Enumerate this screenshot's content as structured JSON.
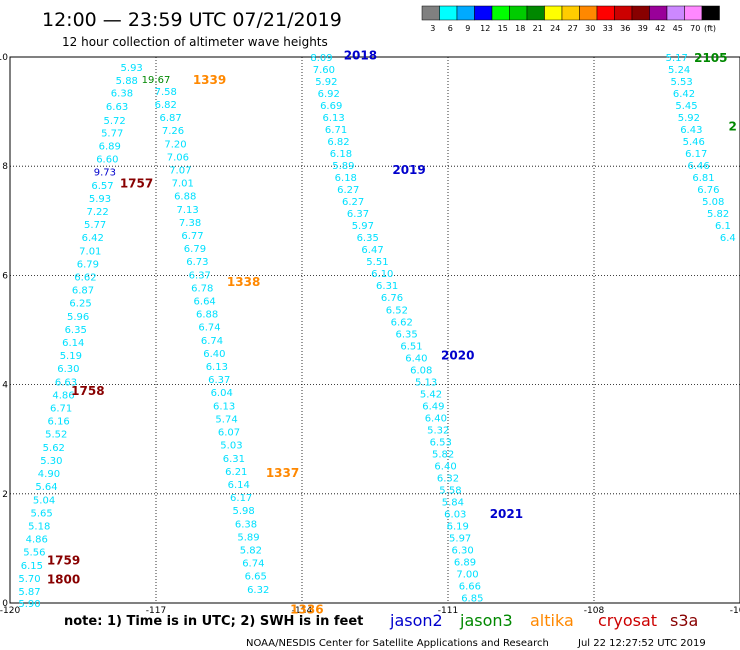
{
  "header": {
    "title": "12:00 — 23:59 UTC 07/21/2019",
    "subtitle": "12 hour collection of altimeter wave heights"
  },
  "color_scale": {
    "unit": "(ft)",
    "bins": [
      {
        "label": "3",
        "color": "#808080"
      },
      {
        "label": "6",
        "color": "#00ffff"
      },
      {
        "label": "9",
        "color": "#00aaff"
      },
      {
        "label": "12",
        "color": "#0000ff"
      },
      {
        "label": "15",
        "color": "#00ff00"
      },
      {
        "label": "18",
        "color": "#00cc00"
      },
      {
        "label": "21",
        "color": "#008800"
      },
      {
        "label": "24",
        "color": "#ffff00"
      },
      {
        "label": "27",
        "color": "#ffcc00"
      },
      {
        "label": "30",
        "color": "#ff8800"
      },
      {
        "label": "33",
        "color": "#ff0000"
      },
      {
        "label": "36",
        "color": "#cc0000"
      },
      {
        "label": "39",
        "color": "#880000"
      },
      {
        "label": "42",
        "color": "#990099"
      },
      {
        "label": "45",
        "color": "#cc88ff"
      },
      {
        "label": "70",
        "color": "#ff88ff"
      },
      {
        "label": "",
        "color": "#000000"
      }
    ]
  },
  "footer": {
    "note": "note: 1) Time is in UTC; 2) SWH is in feet",
    "credit": "NOAA/NESDIS Center for Satellite Applications and Research",
    "timestamp": "Jul 22 12:27:52 UTC 2019"
  },
  "legend": [
    {
      "name": "jason2",
      "color": "#0000cc"
    },
    {
      "name": "jason3",
      "color": "#008800"
    },
    {
      "name": "altika",
      "color": "#ff8800"
    },
    {
      "name": "cryosat",
      "color": "#cc0000"
    },
    {
      "name": "s3a",
      "color": "#880000"
    }
  ],
  "chart_data": {
    "type": "scatter",
    "xlim": [
      -120,
      -105
    ],
    "ylim": [
      0,
      10
    ],
    "x_ticks": [
      "-120",
      "-117",
      "-114",
      "-111",
      "-108",
      "-105"
    ],
    "y_ticks": [
      "0",
      "2",
      "4",
      "6",
      "8",
      "10"
    ],
    "grid": true,
    "tracks": [
      {
        "satellite": "s3a",
        "color": "#00e0ff",
        "pass_labels": [
          {
            "text": "1757",
            "x": -117.4,
            "y": 7.7,
            "color": "#880000"
          },
          {
            "text": "1758",
            "x": -118.4,
            "y": 3.9,
            "color": "#880000"
          },
          {
            "text": "1759",
            "x": -118.9,
            "y": 0.8,
            "color": "#880000"
          },
          {
            "text": "1800",
            "x": -118.9,
            "y": 0.45,
            "color": "#880000"
          }
        ],
        "points": [
          {
            "x": -117.5,
            "y": 9.82,
            "v": "5.93"
          },
          {
            "x": -117.6,
            "y": 9.58,
            "v": "5.88"
          },
          {
            "x": -117.7,
            "y": 9.35,
            "v": "6.38"
          },
          {
            "x": -117.8,
            "y": 9.1,
            "v": "6.63"
          },
          {
            "x": -117.85,
            "y": 8.85,
            "v": "5.72"
          },
          {
            "x": -117.9,
            "y": 8.62,
            "v": "5.77"
          },
          {
            "x": -117.95,
            "y": 8.38,
            "v": "6.89"
          },
          {
            "x": -118.0,
            "y": 8.14,
            "v": "6.60"
          },
          {
            "x": -118.05,
            "y": 7.9,
            "v": "9.73",
            "c": "#0000cc"
          },
          {
            "x": -118.1,
            "y": 7.66,
            "v": "6.57"
          },
          {
            "x": -118.15,
            "y": 7.42,
            "v": "5.93"
          },
          {
            "x": -118.2,
            "y": 7.18,
            "v": "7.22"
          },
          {
            "x": -118.25,
            "y": 6.94,
            "v": "5.77"
          },
          {
            "x": -118.3,
            "y": 6.7,
            "v": "6.42"
          },
          {
            "x": -118.35,
            "y": 6.46,
            "v": "7.01"
          },
          {
            "x": -118.4,
            "y": 6.22,
            "v": "6.79"
          },
          {
            "x": -118.45,
            "y": 5.98,
            "v": "6.62"
          },
          {
            "x": -118.5,
            "y": 5.74,
            "v": "6.87"
          },
          {
            "x": -118.55,
            "y": 5.5,
            "v": "6.25"
          },
          {
            "x": -118.6,
            "y": 5.26,
            "v": "5.96"
          },
          {
            "x": -118.65,
            "y": 5.02,
            "v": "6.35"
          },
          {
            "x": -118.7,
            "y": 4.78,
            "v": "6.14"
          },
          {
            "x": -118.75,
            "y": 4.54,
            "v": "5.19"
          },
          {
            "x": -118.8,
            "y": 4.3,
            "v": "6.30"
          },
          {
            "x": -118.85,
            "y": 4.06,
            "v": "6.63"
          },
          {
            "x": -118.9,
            "y": 3.82,
            "v": "4.86"
          },
          {
            "x": -118.95,
            "y": 3.58,
            "v": "6.71"
          },
          {
            "x": -119.0,
            "y": 3.34,
            "v": "6.16"
          },
          {
            "x": -119.05,
            "y": 3.1,
            "v": "5.52"
          },
          {
            "x": -119.1,
            "y": 2.86,
            "v": "5.62"
          },
          {
            "x": -119.15,
            "y": 2.62,
            "v": "5.30"
          },
          {
            "x": -119.2,
            "y": 2.38,
            "v": "4.90"
          },
          {
            "x": -119.25,
            "y": 2.14,
            "v": "5.64"
          },
          {
            "x": -119.3,
            "y": 1.9,
            "v": "5.04"
          },
          {
            "x": -119.35,
            "y": 1.66,
            "v": "5.65"
          },
          {
            "x": -119.4,
            "y": 1.42,
            "v": "5.18"
          },
          {
            "x": -119.45,
            "y": 1.18,
            "v": "4.86"
          },
          {
            "x": -119.5,
            "y": 0.94,
            "v": "5.56"
          },
          {
            "x": -119.55,
            "y": 0.7,
            "v": "6.15"
          },
          {
            "x": -119.6,
            "y": 0.46,
            "v": "5.70"
          },
          {
            "x": -119.6,
            "y": 0.22,
            "v": "5.87"
          },
          {
            "x": -119.6,
            "y": 0.0,
            "v": "5.90"
          }
        ]
      },
      {
        "satellite": "altika",
        "color": "#00e0ff",
        "pass_labels": [
          {
            "text": "1339",
            "x": -115.9,
            "y": 9.6,
            "color": "#ff8800"
          },
          {
            "text": "1338",
            "x": -115.2,
            "y": 5.9,
            "color": "#ff8800"
          },
          {
            "text": "1337",
            "x": -114.4,
            "y": 2.4,
            "color": "#ff8800"
          },
          {
            "text": "1336",
            "x": -113.9,
            "y": -0.1,
            "color": "#ff8800"
          }
        ],
        "points": [
          {
            "x": -117.0,
            "y": 9.6,
            "v": "19.67",
            "c": "#008800"
          },
          {
            "x": -116.8,
            "y": 9.38,
            "v": "7.58"
          },
          {
            "x": -116.8,
            "y": 9.14,
            "v": "6.82"
          },
          {
            "x": -116.7,
            "y": 8.9,
            "v": "6.87"
          },
          {
            "x": -116.65,
            "y": 8.66,
            "v": "7.26"
          },
          {
            "x": -116.6,
            "y": 8.42,
            "v": "7.20"
          },
          {
            "x": -116.55,
            "y": 8.18,
            "v": "7.06"
          },
          {
            "x": -116.5,
            "y": 7.94,
            "v": "7.07"
          },
          {
            "x": -116.45,
            "y": 7.7,
            "v": "7.01"
          },
          {
            "x": -116.4,
            "y": 7.46,
            "v": "6.88"
          },
          {
            "x": -116.35,
            "y": 7.22,
            "v": "7.13"
          },
          {
            "x": -116.3,
            "y": 6.98,
            "v": "7.38"
          },
          {
            "x": -116.25,
            "y": 6.74,
            "v": "6.77"
          },
          {
            "x": -116.2,
            "y": 6.5,
            "v": "6.79"
          },
          {
            "x": -116.15,
            "y": 6.26,
            "v": "6.73"
          },
          {
            "x": -116.1,
            "y": 6.02,
            "v": "6.37"
          },
          {
            "x": -116.05,
            "y": 5.78,
            "v": "6.78"
          },
          {
            "x": -116.0,
            "y": 5.54,
            "v": "6.64"
          },
          {
            "x": -115.95,
            "y": 5.3,
            "v": "6.88"
          },
          {
            "x": -115.9,
            "y": 5.06,
            "v": "6.74"
          },
          {
            "x": -115.85,
            "y": 4.82,
            "v": "6.74"
          },
          {
            "x": -115.8,
            "y": 4.58,
            "v": "6.40"
          },
          {
            "x": -115.75,
            "y": 4.34,
            "v": "6.13"
          },
          {
            "x": -115.7,
            "y": 4.1,
            "v": "6.37"
          },
          {
            "x": -115.65,
            "y": 3.86,
            "v": "6.04"
          },
          {
            "x": -115.6,
            "y": 3.62,
            "v": "6.13"
          },
          {
            "x": -115.55,
            "y": 3.38,
            "v": "5.74"
          },
          {
            "x": -115.5,
            "y": 3.14,
            "v": "6.07"
          },
          {
            "x": -115.45,
            "y": 2.9,
            "v": "5.03"
          },
          {
            "x": -115.4,
            "y": 2.66,
            "v": "6.31"
          },
          {
            "x": -115.35,
            "y": 2.42,
            "v": "6.21"
          },
          {
            "x": -115.3,
            "y": 2.18,
            "v": "6.14"
          },
          {
            "x": -115.25,
            "y": 1.94,
            "v": "6.17"
          },
          {
            "x": -115.2,
            "y": 1.7,
            "v": "5.98"
          },
          {
            "x": -115.15,
            "y": 1.46,
            "v": "6.38"
          },
          {
            "x": -115.1,
            "y": 1.22,
            "v": "5.89"
          },
          {
            "x": -115.05,
            "y": 0.98,
            "v": "5.82"
          },
          {
            "x": -115.0,
            "y": 0.74,
            "v": "6.74"
          },
          {
            "x": -114.95,
            "y": 0.5,
            "v": "6.65"
          },
          {
            "x": -114.9,
            "y": 0.26,
            "v": "6.32"
          }
        ]
      },
      {
        "satellite": "jason2",
        "color": "#00e0ff",
        "pass_labels": [
          {
            "text": "2018",
            "x": -112.8,
            "y": 10.05,
            "color": "#0000cc"
          },
          {
            "text": "2019",
            "x": -111.8,
            "y": 7.95,
            "color": "#0000cc"
          },
          {
            "text": "2020",
            "x": -110.8,
            "y": 4.55,
            "color": "#0000cc"
          },
          {
            "text": "2021",
            "x": -109.8,
            "y": 1.65,
            "color": "#0000cc"
          }
        ],
        "points": [
          {
            "x": -113.6,
            "y": 10.0,
            "v": "8.09"
          },
          {
            "x": -113.55,
            "y": 9.78,
            "v": "7.60"
          },
          {
            "x": -113.5,
            "y": 9.56,
            "v": "5.92"
          },
          {
            "x": -113.45,
            "y": 9.34,
            "v": "6.92"
          },
          {
            "x": -113.4,
            "y": 9.12,
            "v": "6.69"
          },
          {
            "x": -113.35,
            "y": 8.9,
            "v": "6.13"
          },
          {
            "x": -113.3,
            "y": 8.68,
            "v": "6.71"
          },
          {
            "x": -113.25,
            "y": 8.46,
            "v": "6.82"
          },
          {
            "x": -113.2,
            "y": 8.24,
            "v": "6.18"
          },
          {
            "x": -113.15,
            "y": 8.02,
            "v": "5.89"
          },
          {
            "x": -113.1,
            "y": 7.8,
            "v": "6.18"
          },
          {
            "x": -113.05,
            "y": 7.58,
            "v": "6.27"
          },
          {
            "x": -112.95,
            "y": 7.36,
            "v": "6.27"
          },
          {
            "x": -112.85,
            "y": 7.14,
            "v": "6.37"
          },
          {
            "x": -112.75,
            "y": 6.92,
            "v": "5.97"
          },
          {
            "x": -112.65,
            "y": 6.7,
            "v": "6.35"
          },
          {
            "x": -112.55,
            "y": 6.48,
            "v": "6.47"
          },
          {
            "x": -112.45,
            "y": 6.26,
            "v": "5.51"
          },
          {
            "x": -112.35,
            "y": 6.04,
            "v": "6.10"
          },
          {
            "x": -112.25,
            "y": 5.82,
            "v": "6.31"
          },
          {
            "x": -112.15,
            "y": 5.6,
            "v": "6.76"
          },
          {
            "x": -112.05,
            "y": 5.38,
            "v": "6.52"
          },
          {
            "x": -111.95,
            "y": 5.16,
            "v": "6.62"
          },
          {
            "x": -111.85,
            "y": 4.94,
            "v": "6.35"
          },
          {
            "x": -111.75,
            "y": 4.72,
            "v": "6.51"
          },
          {
            "x": -111.65,
            "y": 4.5,
            "v": "6.40"
          },
          {
            "x": -111.55,
            "y": 4.28,
            "v": "6.08"
          },
          {
            "x": -111.45,
            "y": 4.06,
            "v": "5.13"
          },
          {
            "x": -111.35,
            "y": 3.84,
            "v": "5.42"
          },
          {
            "x": -111.3,
            "y": 3.62,
            "v": "6.49"
          },
          {
            "x": -111.25,
            "y": 3.4,
            "v": "6.40"
          },
          {
            "x": -111.2,
            "y": 3.18,
            "v": "5.32"
          },
          {
            "x": -111.15,
            "y": 2.96,
            "v": "6.53"
          },
          {
            "x": -111.1,
            "y": 2.74,
            "v": "5.82"
          },
          {
            "x": -111.05,
            "y": 2.52,
            "v": "6.40"
          },
          {
            "x": -111.0,
            "y": 2.3,
            "v": "6.32"
          },
          {
            "x": -110.95,
            "y": 2.08,
            "v": "5.58"
          },
          {
            "x": -110.9,
            "y": 1.86,
            "v": "5.84"
          },
          {
            "x": -110.85,
            "y": 1.64,
            "v": "6.03"
          },
          {
            "x": -110.8,
            "y": 1.42,
            "v": "6.19"
          },
          {
            "x": -110.75,
            "y": 1.2,
            "v": "5.97"
          },
          {
            "x": -110.7,
            "y": 0.98,
            "v": "6.30"
          },
          {
            "x": -110.65,
            "y": 0.76,
            "v": "6.89"
          },
          {
            "x": -110.6,
            "y": 0.54,
            "v": "7.00"
          },
          {
            "x": -110.55,
            "y": 0.32,
            "v": "6.66"
          },
          {
            "x": -110.5,
            "y": 0.1,
            "v": "6.85"
          }
        ]
      },
      {
        "satellite": "jason3",
        "color": "#00e0ff",
        "pass_labels": [
          {
            "text": "2105",
            "x": -105.6,
            "y": 10.0,
            "color": "#008800"
          },
          {
            "text": "2",
            "x": -105.15,
            "y": 8.75,
            "color": "#008800"
          }
        ],
        "points": [
          {
            "x": -106.3,
            "y": 10.0,
            "v": "5.17"
          },
          {
            "x": -106.25,
            "y": 9.78,
            "v": "5.24"
          },
          {
            "x": -106.2,
            "y": 9.56,
            "v": "5.53"
          },
          {
            "x": -106.15,
            "y": 9.34,
            "v": "6.42"
          },
          {
            "x": -106.1,
            "y": 9.12,
            "v": "5.45"
          },
          {
            "x": -106.05,
            "y": 8.9,
            "v": "5.92"
          },
          {
            "x": -106.0,
            "y": 8.68,
            "v": "6.43"
          },
          {
            "x": -105.95,
            "y": 8.46,
            "v": "5.46"
          },
          {
            "x": -105.9,
            "y": 8.24,
            "v": "6.17"
          },
          {
            "x": -105.85,
            "y": 8.02,
            "v": "6.46"
          },
          {
            "x": -105.75,
            "y": 7.8,
            "v": "6.81"
          },
          {
            "x": -105.65,
            "y": 7.58,
            "v": "6.76"
          },
          {
            "x": -105.55,
            "y": 7.36,
            "v": "5.08"
          },
          {
            "x": -105.45,
            "y": 7.14,
            "v": "5.82"
          },
          {
            "x": -105.35,
            "y": 6.92,
            "v": "6.1"
          },
          {
            "x": -105.25,
            "y": 6.7,
            "v": "6.4"
          }
        ]
      }
    ]
  }
}
